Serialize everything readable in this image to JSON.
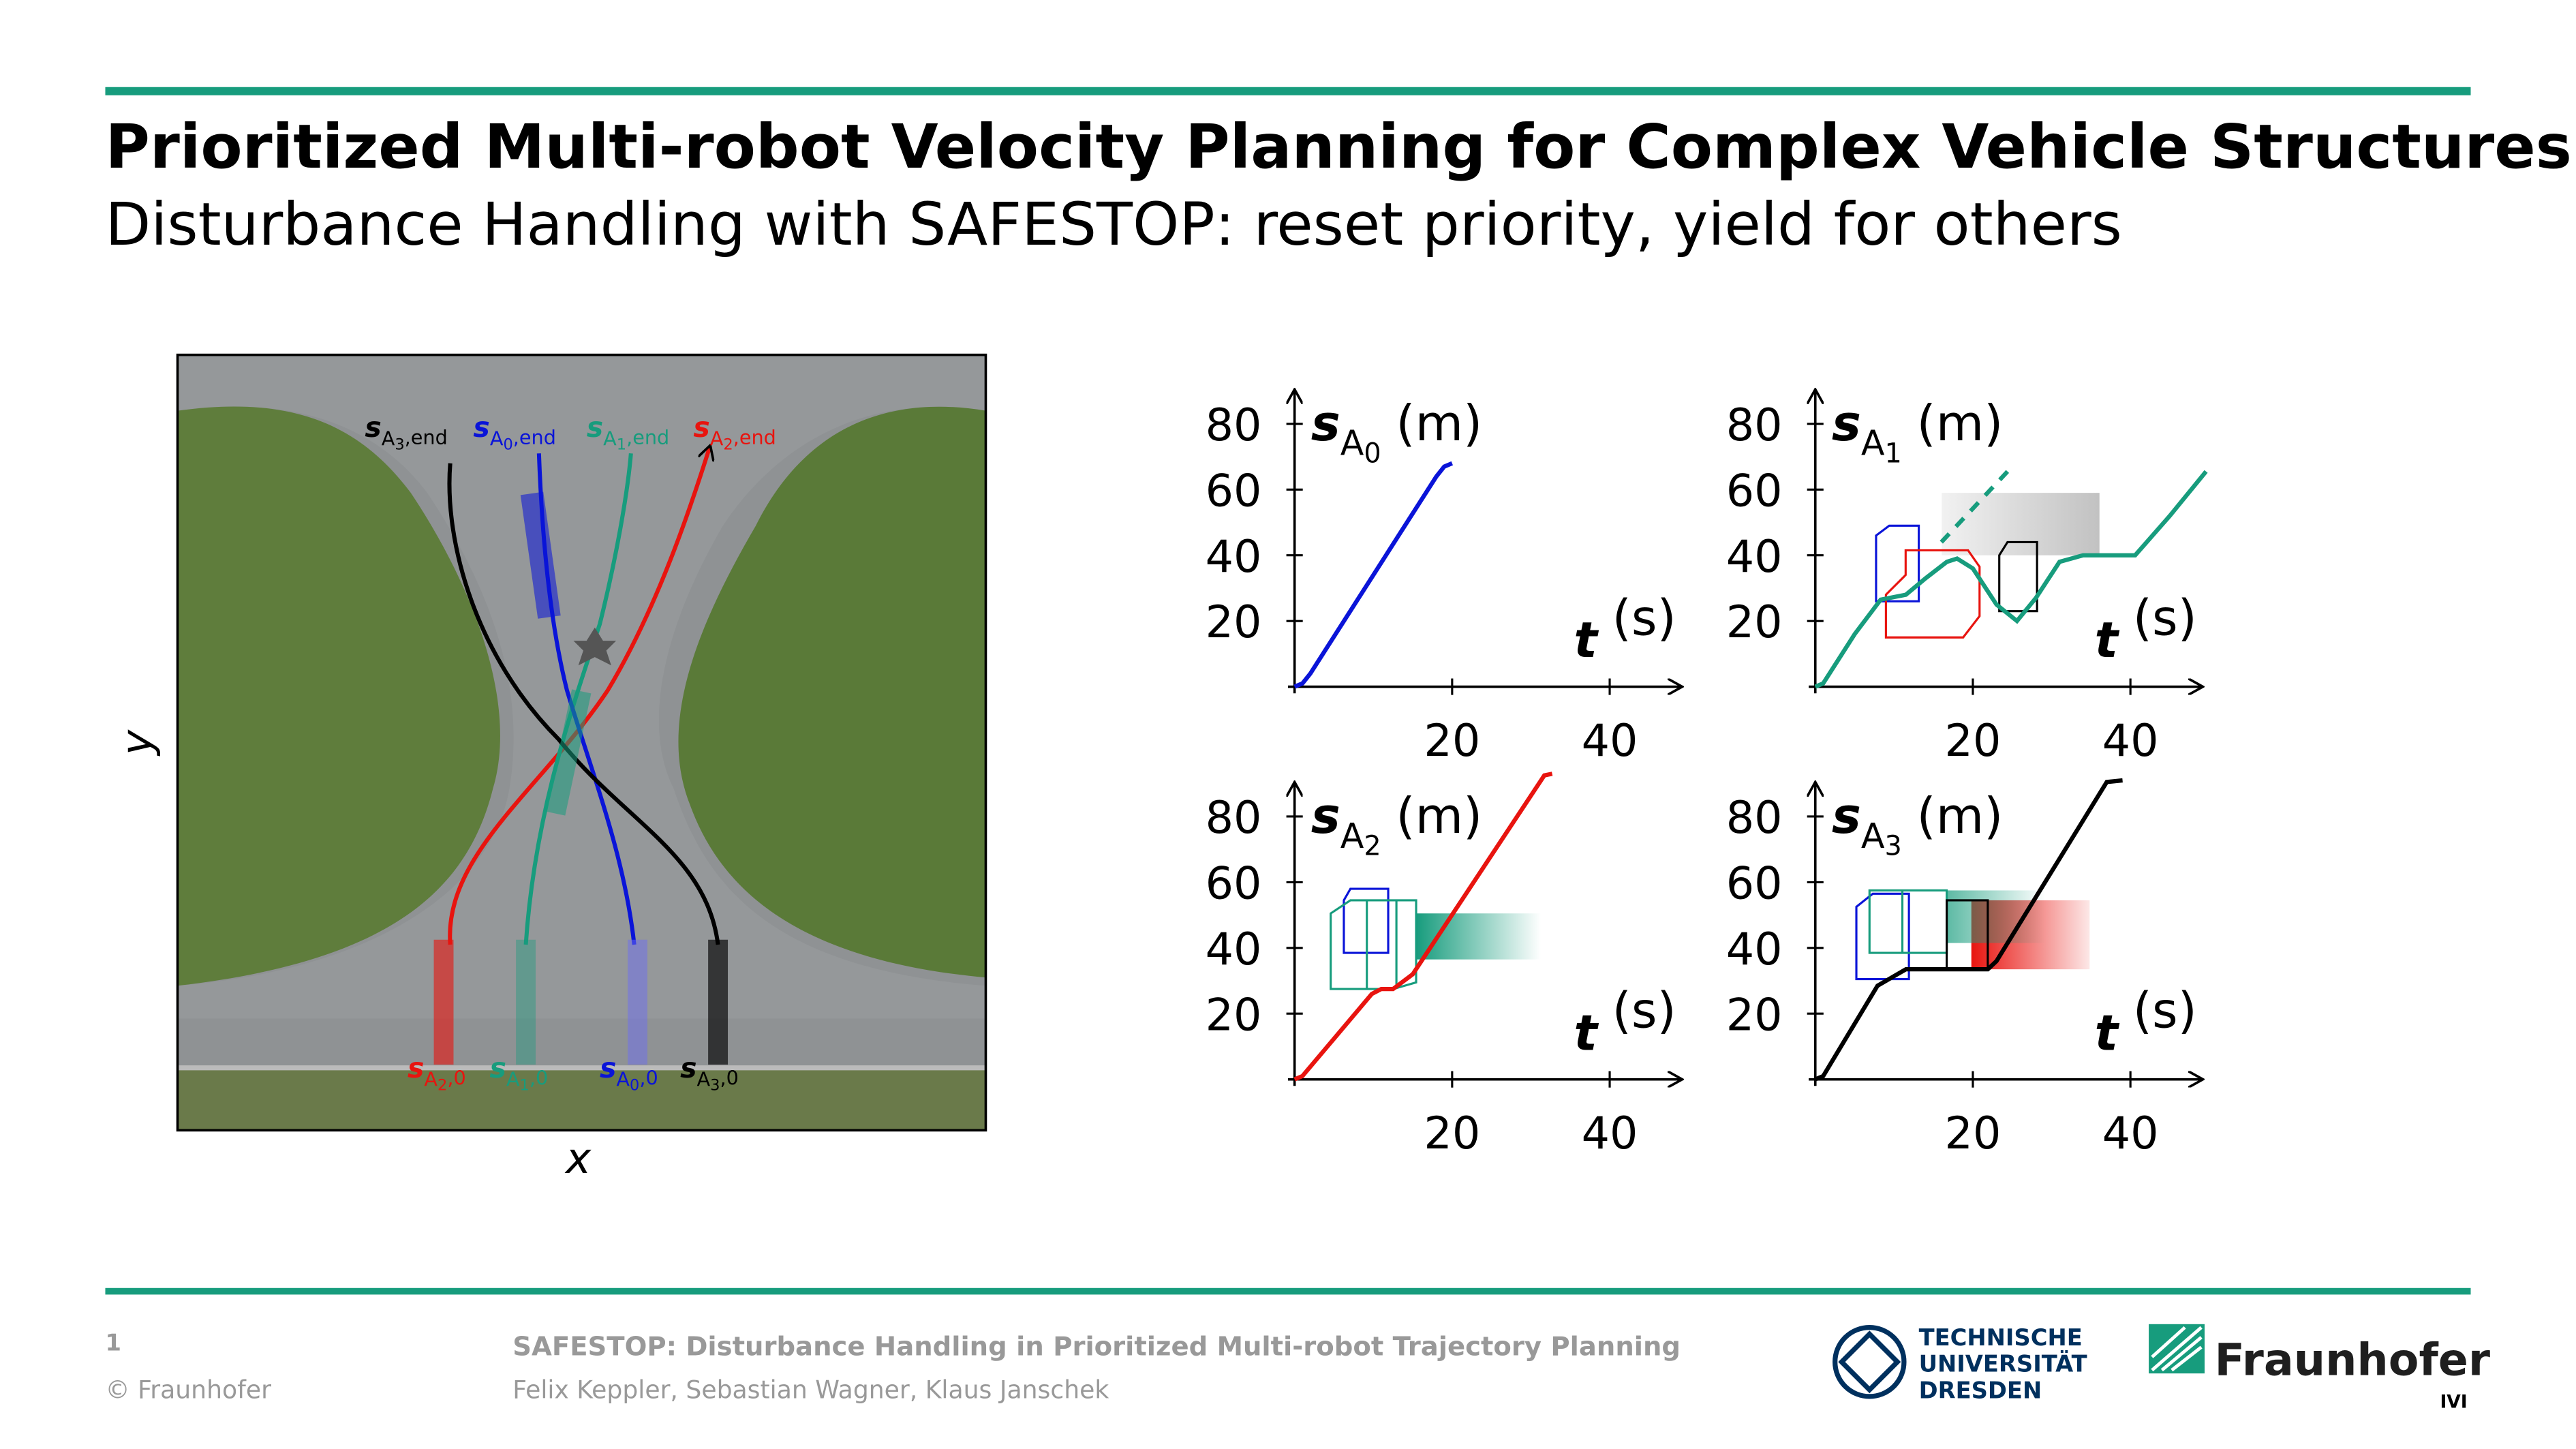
{
  "header": {
    "title": "Prioritized Multi-robot Velocity Planning for Complex Vehicle Structures",
    "subtitle": "Disturbance Handling with SAFESTOP: reset priority, yield for others"
  },
  "map": {
    "x_label": "x",
    "y_label": "y",
    "end_labels": [
      {
        "symbol": "s",
        "sub": "A",
        "subsub": "3",
        "suffix": ",end",
        "color": "#000000"
      },
      {
        "symbol": "s",
        "sub": "A",
        "subsub": "0",
        "suffix": ",end",
        "color": "#0a14d8"
      },
      {
        "symbol": "s",
        "sub": "A",
        "subsub": "1",
        "suffix": ",end",
        "color": "#179c7d"
      },
      {
        "symbol": "s",
        "sub": "A",
        "subsub": "2",
        "suffix": ",end",
        "color": "#e8140f"
      }
    ],
    "start_labels": [
      {
        "symbol": "s",
        "sub": "A",
        "subsub": "2",
        "suffix": ",0",
        "color": "#e8140f"
      },
      {
        "symbol": "s",
        "sub": "A",
        "subsub": "1",
        "suffix": ",0",
        "color": "#179c7d"
      },
      {
        "symbol": "s",
        "sub": "A",
        "subsub": "0",
        "suffix": ",0",
        "color": "#0a14d8"
      },
      {
        "symbol": "s",
        "sub": "A",
        "subsub": "3",
        "suffix": ",0",
        "color": "#000000"
      }
    ]
  },
  "chart_data": [
    {
      "type": "line",
      "y_label": {
        "symbol": "s",
        "sub": "A",
        "subsub": "0",
        "unit": "(m)"
      },
      "x_label": {
        "symbol": "t",
        "unit": "(s)"
      },
      "xlim": [
        0,
        49
      ],
      "ylim": [
        0,
        88
      ],
      "xticks": [
        20,
        40
      ],
      "yticks": [
        20,
        40,
        60,
        80
      ],
      "series": [
        {
          "color": "#0a14d8",
          "x": [
            0,
            1,
            2,
            18,
            19,
            20
          ],
          "values": [
            0,
            1,
            4,
            64,
            67,
            68
          ]
        }
      ]
    },
    {
      "type": "line",
      "y_label": {
        "symbol": "s",
        "sub": "A",
        "subsub": "1",
        "unit": "(m)"
      },
      "x_label": {
        "symbol": "t",
        "unit": "(s)"
      },
      "xlim": [
        0,
        49
      ],
      "ylim": [
        0,
        88
      ],
      "xticks": [
        20,
        40
      ],
      "yticks": [
        20,
        40,
        60,
        80
      ],
      "series": [
        {
          "color": "#179c7d",
          "x": [
            0,
            1,
            5,
            8.3,
            11.5,
            14,
            16.7,
            18,
            20,
            23,
            25.6,
            28,
            31,
            34,
            40.6,
            45,
            49.6
          ],
          "values": [
            0,
            1,
            16,
            26.5,
            28,
            33,
            38,
            39,
            36,
            25,
            20,
            27,
            38,
            40,
            40,
            52,
            65.5
          ]
        },
        {
          "color": "#179c7d",
          "dashed": true,
          "x": [
            16,
            24.4
          ],
          "values": [
            44,
            65.5
          ]
        }
      ]
    },
    {
      "type": "line",
      "y_label": {
        "symbol": "s",
        "sub": "A",
        "subsub": "2",
        "unit": "(m)"
      },
      "x_label": {
        "symbol": "t",
        "unit": "(s)"
      },
      "xlim": [
        0,
        49
      ],
      "ylim": [
        0,
        88
      ],
      "xticks": [
        20,
        40
      ],
      "yticks": [
        20,
        40,
        60,
        80
      ],
      "series": [
        {
          "color": "#e8140f",
          "x": [
            0,
            1,
            9.8,
            11,
            12.5,
            15,
            31.7,
            32.7
          ],
          "values": [
            0,
            1,
            26,
            27.5,
            27.5,
            32,
            92.5,
            93
          ]
        }
      ]
    },
    {
      "type": "line",
      "y_label": {
        "symbol": "s",
        "sub": "A",
        "subsub": "3",
        "unit": "(m)"
      },
      "x_label": {
        "symbol": "t",
        "unit": "(s)"
      },
      "xlim": [
        0,
        49
      ],
      "ylim": [
        0,
        88
      ],
      "xticks": [
        20,
        40
      ],
      "yticks": [
        20,
        40,
        60,
        80
      ],
      "series": [
        {
          "color": "#000000",
          "x": [
            0,
            1,
            7.9,
            11.5,
            21.9,
            23,
            37,
            39
          ],
          "values": [
            0,
            1,
            28.5,
            33.5,
            33.5,
            36,
            90.5,
            91
          ]
        }
      ]
    }
  ],
  "footer": {
    "page": "1",
    "copyright": "© Fraunhofer",
    "talk": "SAFESTOP: Disturbance Handling in Prioritized Multi-robot Trajectory Planning",
    "authors": "Felix Keppler, Sebastian Wagner, Klaus Janschek",
    "tud": [
      "TECHNISCHE",
      "UNIVERSITÄT",
      "DRESDEN"
    ],
    "fraunhofer": "Fraunhofer",
    "institute": "IVI"
  }
}
